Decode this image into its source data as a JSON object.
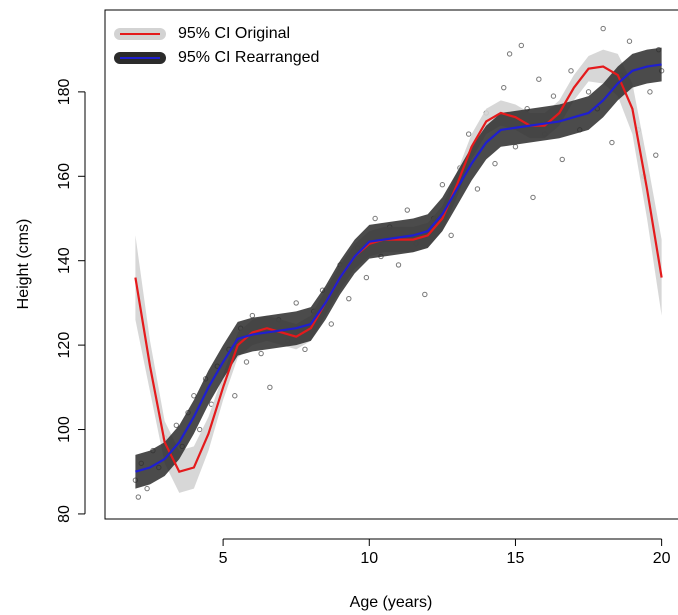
{
  "chart_data": {
    "type": "scatter-with-bands",
    "x_label": "Age (years)",
    "y_label": "Height (cms)",
    "xlim": [
      0.96,
      20.56
    ],
    "ylim": [
      78.8,
      199.4
    ],
    "xticks": [
      5,
      10,
      15,
      20
    ],
    "yticks": [
      80,
      100,
      120,
      140,
      160,
      180
    ],
    "legend": "topleft",
    "points": {
      "color": "#777777",
      "x": [
        2.0,
        2.1,
        2.2,
        2.4,
        2.6,
        2.8,
        3.0,
        3.2,
        3.4,
        3.6,
        3.8,
        4.0,
        4.2,
        4.4,
        4.6,
        4.8,
        5.0,
        5.2,
        5.4,
        5.6,
        5.8,
        6.0,
        6.3,
        6.6,
        6.9,
        7.2,
        7.5,
        7.8,
        8.1,
        8.4,
        8.7,
        9.0,
        9.3,
        9.6,
        9.9,
        10.2,
        10.4,
        10.7,
        11.0,
        11.3,
        11.6,
        11.9,
        12.2,
        12.5,
        12.8,
        13.1,
        13.4,
        13.7,
        14.0,
        14.3,
        14.6,
        14.8,
        15.0,
        15.2,
        15.4,
        15.6,
        15.8,
        16.0,
        16.3,
        16.6,
        16.9,
        17.2,
        17.5,
        17.8,
        18.0,
        18.3,
        18.6,
        18.9,
        19.2,
        19.4,
        19.6,
        19.8,
        20.0,
        19.9
      ],
      "y": [
        88,
        84,
        92,
        86,
        95,
        91,
        98,
        94,
        101,
        96,
        104,
        108,
        100,
        112,
        106,
        115,
        111,
        119,
        108,
        124,
        116,
        127,
        118,
        110,
        126,
        121,
        130,
        119,
        128,
        133,
        125,
        139,
        131,
        143,
        136,
        150,
        141,
        148,
        139,
        152,
        144,
        132,
        150,
        158,
        146,
        162,
        170,
        157,
        175,
        163,
        181,
        189,
        167,
        191,
        176,
        155,
        183,
        170,
        179,
        164,
        185,
        171,
        180,
        176,
        195,
        168,
        184,
        192,
        171,
        160,
        180,
        165,
        185,
        190
      ]
    },
    "series": [
      {
        "name": "95% CI Original",
        "color": "#e41a1c",
        "band_color": "#d3d3d3",
        "x": [
          2,
          2.5,
          3,
          3.5,
          4,
          4.5,
          5,
          5.5,
          6,
          6.5,
          7,
          7.5,
          8,
          8.5,
          9,
          9.5,
          10,
          10.5,
          11,
          11.5,
          12,
          12.5,
          13,
          13.5,
          14,
          14.5,
          15,
          15.5,
          16,
          16.5,
          17,
          17.5,
          18,
          18.5,
          19,
          19.5,
          20
        ],
        "values": [
          136,
          115,
          97,
          90,
          91,
          99,
          110,
          120,
          123,
          124,
          123,
          122,
          124,
          130,
          136,
          141,
          144,
          145,
          145,
          145,
          146,
          150,
          158,
          167,
          173,
          175,
          174,
          172,
          172,
          175,
          181,
          185.5,
          186,
          184,
          176,
          157,
          136
        ],
        "lower": [
          126,
          109,
          92,
          85,
          86,
          95,
          107,
          117,
          120,
          121,
          120,
          119,
          121,
          127,
          133,
          138,
          141,
          142,
          142,
          142,
          143,
          147,
          155,
          164,
          170,
          172,
          171,
          169,
          169,
          172,
          178,
          182.5,
          182,
          179,
          170,
          150,
          127
        ],
        "upper": [
          146,
          121,
          102,
          95,
          96,
          103,
          113,
          123,
          126,
          127,
          126,
          125,
          127,
          133,
          139,
          144,
          147,
          148,
          148,
          148,
          149,
          153,
          161,
          170,
          176,
          178,
          177,
          175,
          175,
          178,
          184,
          188.5,
          190,
          189,
          182,
          164,
          145
        ]
      },
      {
        "name": "95% CI Rearranged",
        "color": "#1f1fd0",
        "band_color": "#2b2b2b",
        "x": [
          2,
          2.5,
          3,
          3.5,
          4,
          4.5,
          5,
          5.5,
          6,
          6.5,
          7,
          7.5,
          8,
          8.5,
          9,
          9.5,
          10,
          10.5,
          11,
          11.5,
          12,
          12.5,
          13,
          13.5,
          14,
          14.5,
          15,
          15.5,
          16,
          16.5,
          17,
          17.5,
          18,
          18.5,
          19,
          19.5,
          20
        ],
        "values": [
          90,
          91,
          93,
          97,
          103,
          110,
          116,
          121.5,
          122.5,
          123,
          123.5,
          124,
          125,
          130,
          136,
          141,
          144.5,
          145,
          145.5,
          146,
          147,
          151,
          157,
          163,
          168,
          171,
          171.5,
          172,
          172.5,
          173,
          174,
          175,
          178,
          182,
          185,
          186,
          186.5
        ],
        "lower": [
          86,
          87,
          89,
          93,
          99,
          106,
          112,
          117.5,
          118.5,
          119,
          119.5,
          120,
          121,
          126,
          132,
          137,
          140.5,
          141,
          141.5,
          142,
          143,
          147,
          153,
          159,
          164,
          167,
          167.5,
          168,
          168.5,
          169,
          170,
          171,
          174,
          178,
          181,
          182,
          182.5
        ],
        "upper": [
          94,
          95,
          97,
          101,
          107,
          114,
          120,
          125.5,
          126.5,
          127,
          127.5,
          128,
          129,
          134,
          140,
          145,
          148.5,
          149,
          149.5,
          150,
          151,
          155,
          161,
          167,
          172,
          175,
          175.5,
          176,
          176.5,
          177,
          178,
          179,
          182,
          186,
          189,
          190,
          190.5
        ]
      }
    ]
  }
}
